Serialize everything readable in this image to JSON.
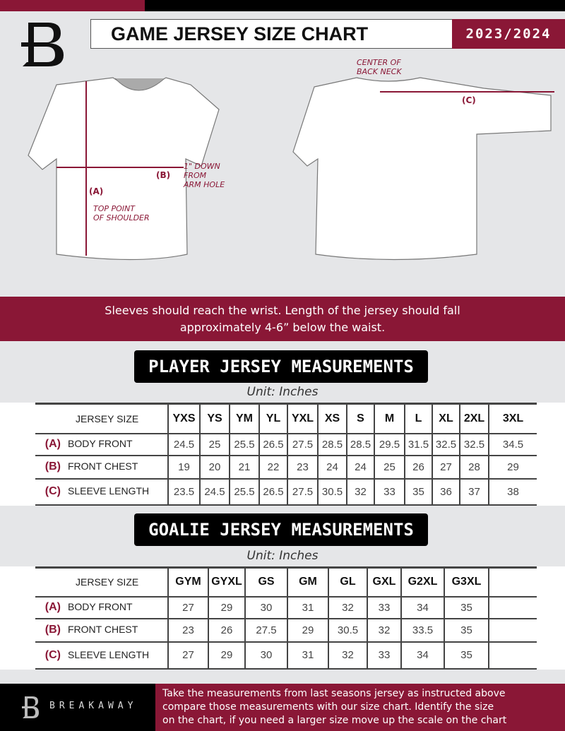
{
  "header": {
    "title": "GAME JERSEY SIZE CHART",
    "season": "2023/2024"
  },
  "diagram": {
    "center_back_neck": [
      "CENTER OF",
      "BACK NECK"
    ],
    "label_a": "(A)",
    "label_b": "(B)",
    "label_c": "(C)",
    "one_inch_down": [
      "1\" DOWN",
      "FROM",
      "ARM HOLE"
    ],
    "top_point": [
      "TOP POINT",
      "OF SHOULDER"
    ]
  },
  "band_text": [
    "Sleeves should reach the wrist. Length of the jersey should fall",
    "approximately 4-6” below the waist."
  ],
  "player": {
    "title": "PLAYER JERSEY MEASUREMENTS",
    "unit": "Unit: Inches",
    "size_label": "JERSEY SIZE",
    "sizes": [
      "YXS",
      "YS",
      "YM",
      "YL",
      "YXL",
      "XS",
      "S",
      "M",
      "L",
      "XL",
      "2XL",
      "3XL"
    ],
    "rows": [
      {
        "letter": "(A)",
        "name": "BODY FRONT",
        "values": [
          "24.5",
          "25",
          "25.5",
          "26.5",
          "27.5",
          "28.5",
          "28.5",
          "29.5",
          "31.5",
          "32.5",
          "32.5",
          "34.5"
        ]
      },
      {
        "letter": "(B)",
        "name": "FRONT CHEST",
        "values": [
          "19",
          "20",
          "21",
          "22",
          "23",
          "24",
          "24",
          "25",
          "26",
          "27",
          "28",
          "29"
        ]
      },
      {
        "letter": "(C)",
        "name": "SLEEVE LENGTH",
        "values": [
          "23.5",
          "24.5",
          "25.5",
          "26.5",
          "27.5",
          "30.5",
          "32",
          "33",
          "35",
          "36",
          "37",
          "38"
        ]
      }
    ]
  },
  "goalie": {
    "title": "GOALIE JERSEY MEASUREMENTS",
    "unit": "Unit: Inches",
    "size_label": "JERSEY SIZE",
    "sizes": [
      "GYM",
      "GYXL",
      "GS",
      "GM",
      "GL",
      "GXL",
      "G2XL",
      "G3XL",
      ""
    ],
    "rows": [
      {
        "letter": "(A)",
        "name": "BODY FRONT",
        "values": [
          "27",
          "29",
          "30",
          "31",
          "32",
          "33",
          "34",
          "35",
          ""
        ]
      },
      {
        "letter": "(B)",
        "name": "FRONT CHEST",
        "values": [
          "23",
          "26",
          "27.5",
          "29",
          "30.5",
          "32",
          "33.5",
          "35",
          ""
        ]
      },
      {
        "letter": "(C)",
        "name": "SLEEVE LENGTH",
        "values": [
          "27",
          "29",
          "30",
          "31",
          "32",
          "33",
          "34",
          "35",
          ""
        ]
      }
    ]
  },
  "footer": {
    "brand": "BREAKAWAY",
    "text": [
      "Take the measurements from last seasons jersey as instructed above",
      "compare those measurements  with our size chart. Identify the size",
      "on the chart, if you need a larger size move up the scale on the chart"
    ]
  },
  "colors": {
    "maroon": "#8a1736",
    "black": "#000000",
    "background": "#e5e6e8"
  }
}
